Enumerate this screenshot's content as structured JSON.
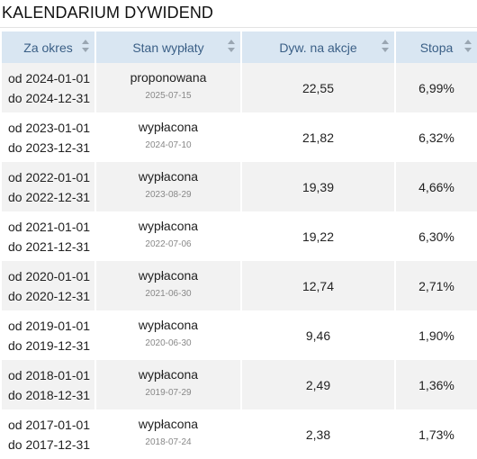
{
  "title": "KALENDARIUM DYWIDEND",
  "columns": [
    {
      "label": "Za okres"
    },
    {
      "label": "Stan wypłaty"
    },
    {
      "label": "Dyw. na akcje"
    },
    {
      "label": "Stopa"
    }
  ],
  "rows": [
    {
      "from": "od 2024-01-01",
      "to": "do 2024-12-31",
      "status": "proponowana",
      "date": "2025-07-15",
      "dividend": "22,55",
      "yield": "6,99%"
    },
    {
      "from": "od 2023-01-01",
      "to": "do 2023-12-31",
      "status": "wypłacona",
      "date": "2024-07-10",
      "dividend": "21,82",
      "yield": "6,32%"
    },
    {
      "from": "od 2022-01-01",
      "to": "do 2022-12-31",
      "status": "wypłacona",
      "date": "2023-08-29",
      "dividend": "19,39",
      "yield": "4,66%"
    },
    {
      "from": "od 2021-01-01",
      "to": "do 2021-12-31",
      "status": "wypłacona",
      "date": "2022-07-06",
      "dividend": "19,22",
      "yield": "6,30%"
    },
    {
      "from": "od 2020-01-01",
      "to": "do 2020-12-31",
      "status": "wypłacona",
      "date": "2021-06-30",
      "dividend": "12,74",
      "yield": "2,71%"
    },
    {
      "from": "od 2019-01-01",
      "to": "do 2019-12-31",
      "status": "wypłacona",
      "date": "2020-06-30",
      "dividend": "9,46",
      "yield": "1,90%"
    },
    {
      "from": "od 2018-01-01",
      "to": "do 2018-12-31",
      "status": "wypłacona",
      "date": "2019-07-29",
      "dividend": "2,49",
      "yield": "1,36%"
    },
    {
      "from": "od 2017-01-01",
      "to": "do 2017-12-31",
      "status": "wypłacona",
      "date": "2018-07-24",
      "dividend": "2,38",
      "yield": "1,73%"
    }
  ],
  "icons": {
    "sort": "sort-icon"
  },
  "colors": {
    "header_bg": "#d9e6f2",
    "header_text": "#3a5f86",
    "row_alt_bg": "#f2f2f2"
  }
}
